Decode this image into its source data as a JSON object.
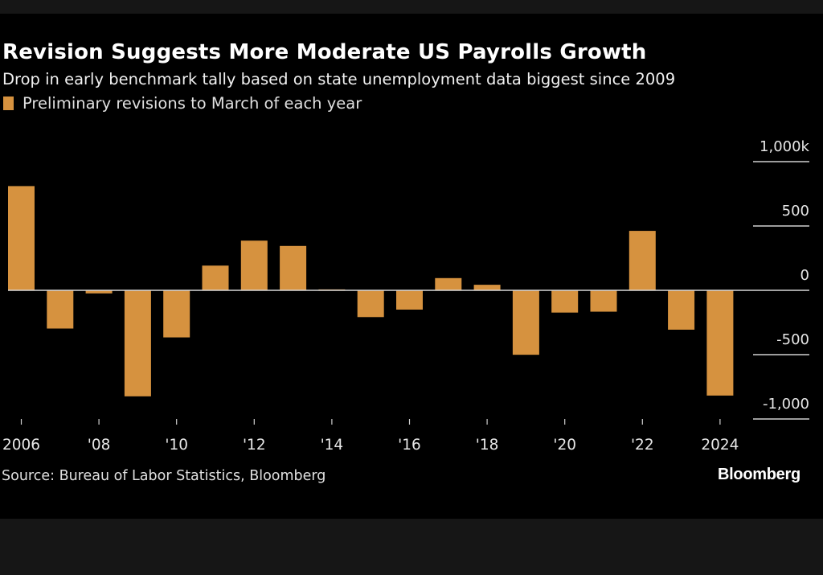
{
  "chart_data": {
    "type": "bar",
    "title": "Revision Suggests More Moderate US Payrolls Growth",
    "subtitle": "Drop in early benchmark tally based on state unemployment data biggest since 2009",
    "legend": [
      {
        "label": "Preliminary revisions to March of each year",
        "color": "#D6923F"
      }
    ],
    "legend_position": "top-left",
    "categories": [
      "2006",
      "2007",
      "2008",
      "2009",
      "2010",
      "2011",
      "2012",
      "2013",
      "2014",
      "2015",
      "2016",
      "2017",
      "2018",
      "2019",
      "2020",
      "2021",
      "2022",
      "2023",
      "2024"
    ],
    "series": [
      {
        "name": "Preliminary revisions to March of each year",
        "color": "#D6923F",
        "values": [
          810,
          -297,
          -24,
          -824,
          -366,
          192,
          386,
          345,
          7,
          -208,
          -150,
          95,
          43,
          -501,
          -173,
          -166,
          462,
          -306,
          -818
        ]
      }
    ],
    "x_tick_labels": [
      "2006",
      "'08",
      "'10",
      "'12",
      "'14",
      "'16",
      "'18",
      "'20",
      "'22",
      "2024"
    ],
    "x_tick_years": [
      2006,
      2008,
      2010,
      2012,
      2014,
      2016,
      2018,
      2020,
      2022,
      2024
    ],
    "y_ticks": [
      1000,
      500,
      0,
      -500,
      -1000
    ],
    "y_tick_labels": [
      "1,000k",
      "500",
      "0",
      "-500",
      "-1,000"
    ],
    "ylim": [
      -1000,
      1000
    ],
    "yaxis_position": "right",
    "xlabel": "",
    "ylabel": "",
    "grid": true
  },
  "footer": {
    "source": "Source: Bureau of Labor Statistics, Bloomberg",
    "brand": "Bloomberg"
  }
}
